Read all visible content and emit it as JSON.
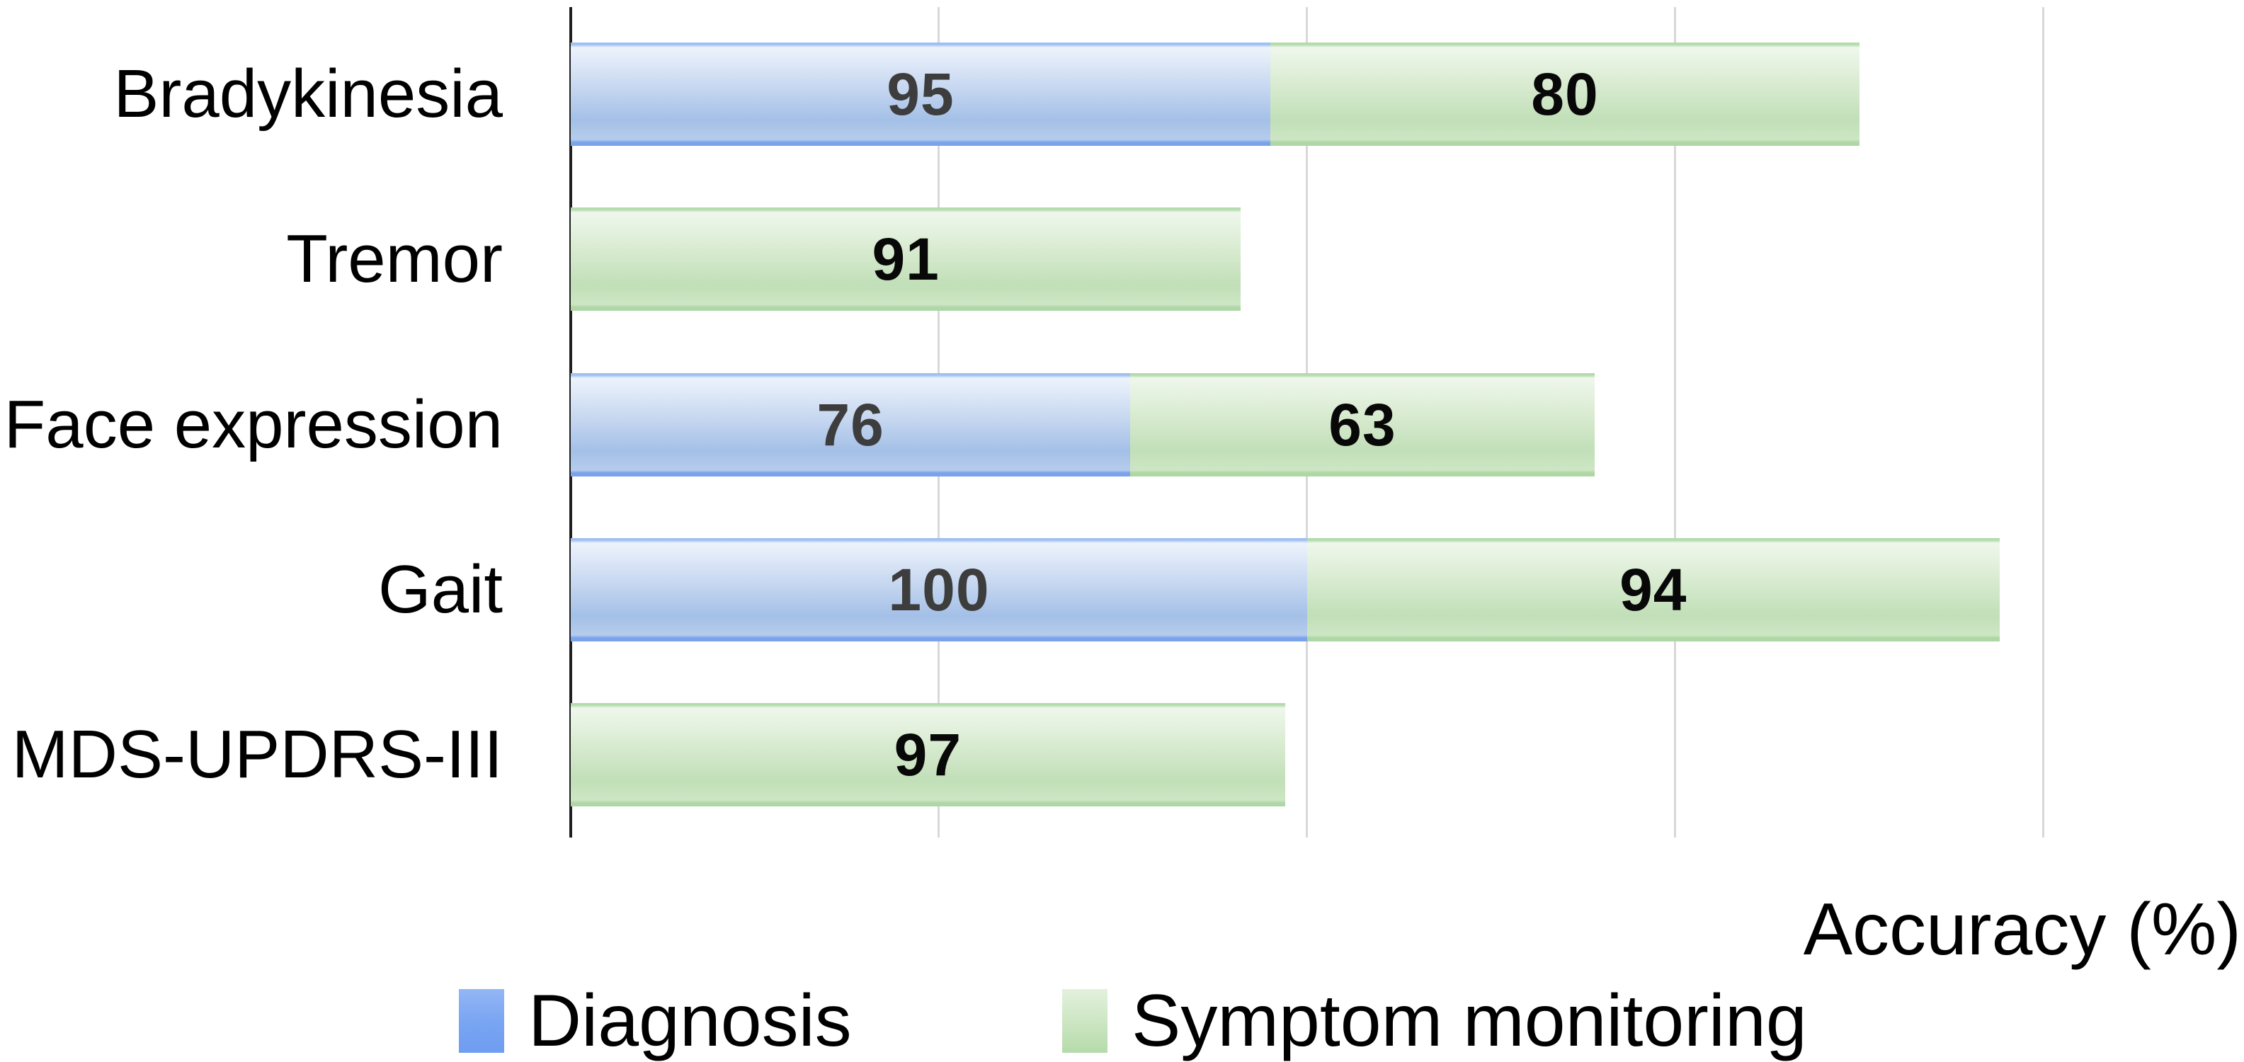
{
  "chart_data": {
    "type": "bar",
    "orientation": "horizontal",
    "stacked": true,
    "title": "",
    "xlabel": "Accuracy (%)",
    "ylabel": "",
    "xlim": [
      0,
      200
    ],
    "gridline_interval": 50,
    "grid": true,
    "legend_position": "bottom",
    "categories": [
      "Bradykinesia",
      "Tremor",
      "Face expression",
      "Gait",
      "MDS-UPDRS-III"
    ],
    "series": [
      {
        "name": "Diagnosis",
        "color": "#7ba3ec",
        "values": [
          95,
          null,
          76,
          100,
          null
        ]
      },
      {
        "name": "Symptom monitoring",
        "color": "#b4dbab",
        "values": [
          80,
          91,
          63,
          94,
          97
        ]
      }
    ]
  },
  "axis_title": "Accuracy (%)",
  "legend": {
    "diagnosis_label": "Diagnosis",
    "monitoring_label": "Symptom monitoring",
    "diagnosis_color": "#78a4f2",
    "monitoring_color": "#b4dbaa"
  },
  "colors": {
    "bar_blue": "#a4c0e7",
    "bar_blue_border": "#7ba3ec",
    "bar_green": "#c1dfb8",
    "bar_green_border": "#afd7a5",
    "gridline": "#d8d8d8",
    "axis_line": "#1f1f1f",
    "label_on_blue": "#3d3d3d",
    "label_on_green": "#080808"
  }
}
